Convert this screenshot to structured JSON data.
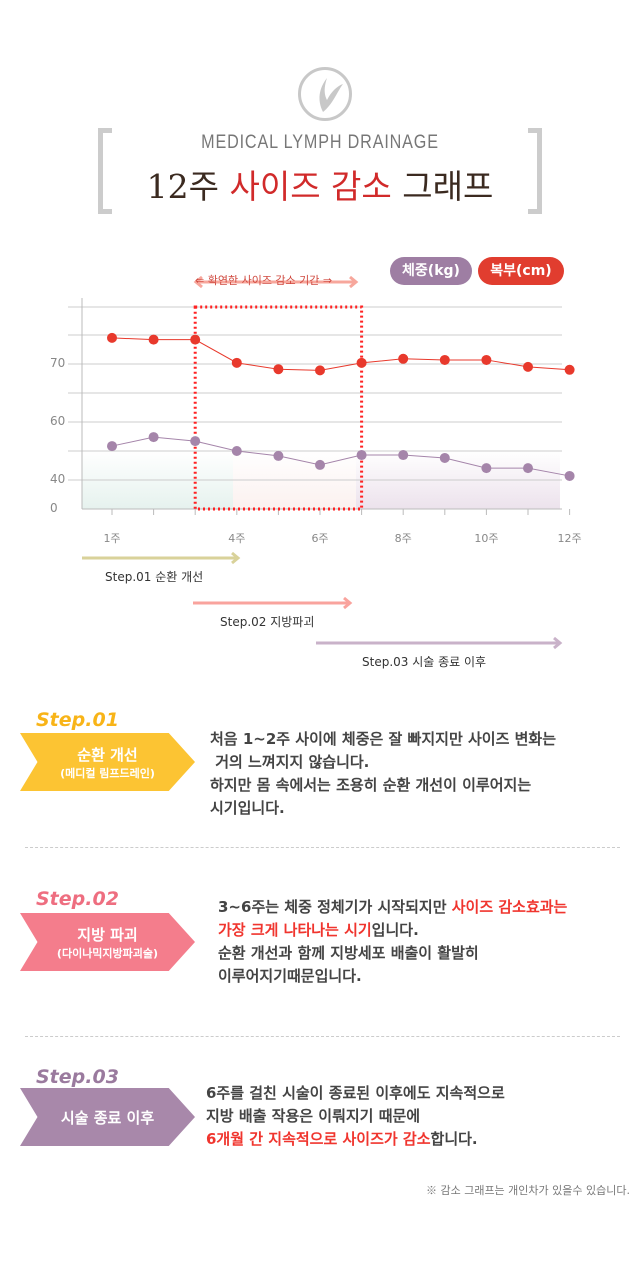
{
  "header": {
    "subtitle": "MEDICAL LYMPH DRAINAGE",
    "title_prefix": "12주 ",
    "title_highlight": "사이즈 감소",
    "title_suffix": " 그래프"
  },
  "chart_data": {
    "type": "line",
    "annotation": "확연한 사이즈 감소 기간",
    "annotation_range_weeks": [
      3,
      7
    ],
    "legend": [
      "체중(kg)",
      "복부(cm)"
    ],
    "legend_placement": "top-right",
    "x": [
      1,
      2,
      3,
      4,
      5,
      6,
      7,
      8,
      9,
      10,
      11,
      12
    ],
    "x_tick_labels": [
      {
        "week": 1,
        "label": "1주"
      },
      {
        "week": 4,
        "label": "4주"
      },
      {
        "week": 6,
        "label": "6주"
      },
      {
        "week": 8,
        "label": "8주"
      },
      {
        "week": 10,
        "label": "10주"
      },
      {
        "week": 12,
        "label": "12주"
      }
    ],
    "y_ticks": [
      0,
      40,
      60,
      70
    ],
    "grid": true,
    "series": [
      {
        "name": "복부(cm)",
        "color": "#e8392c",
        "values": [
          74.5,
          74.2,
          74.2,
          70.2,
          69.1,
          68.9,
          70.2,
          70.9,
          70.7,
          70.7,
          69.5,
          69.0
        ]
      },
      {
        "name": "체중(kg)",
        "color": "#a585aa",
        "values": [
          51.7,
          54.8,
          53.4,
          50.0,
          48.3,
          45.2,
          48.6,
          48.6,
          47.6,
          44.1,
          44.1,
          41.4
        ]
      }
    ],
    "phases": [
      {
        "label": "Step.01 순환 개선",
        "color": "#d9d29a"
      },
      {
        "label": "Step.02 지방파괴",
        "color": "#f9a39d"
      },
      {
        "label": "Step.03 시술 종료 이후",
        "color": "#c9b2c9"
      }
    ]
  },
  "steps": [
    {
      "no": "Step.01",
      "title": "순환 개선",
      "sub": "(메디컬 림프드레인)",
      "color": "#fcc433",
      "no_color": "#f8b418",
      "lines": [
        [
          "처음 1~2주 사이에 체중은 잘 빠지지만  사이즈 변화는"
        ],
        [
          " 거의 느껴지지 않습니다."
        ],
        [
          "하지만 몸 속에서는 조용히 순환 개선이 이루어지는"
        ],
        [
          "시기입니다."
        ]
      ]
    },
    {
      "no": "Step.02",
      "title": "지방 파괴",
      "sub": "(다이나믹지방파괴술)",
      "color": "#f47d8c",
      "no_color": "#ee6e80",
      "line1a": "3~6주는 체중 정체기가 시작되지만 ",
      "line1b": "사이즈 감소효과는",
      "line2a": "가장 크게 나타나는 시기",
      "line2b": "입니다.",
      "line3": "순환 개선과 함께 지방세포 배출이 활발히",
      "line4": "이루어지기때문입니다."
    },
    {
      "no": "Step.03",
      "title": "시술 종료 이후",
      "color": "#a888aa",
      "no_color": "#9a7a9e",
      "line1": "6주를 걸친 시술이 종료된 이후에도 지속적으로",
      "line2": "지방 배출 작용은 이뤄지기 때문에",
      "line3a": "6개월 간 지속적으로 사이즈가 감소",
      "line3b": "합니다."
    }
  ],
  "note": "※ 감소 그래프는 개인차가 있을수 있습니다."
}
